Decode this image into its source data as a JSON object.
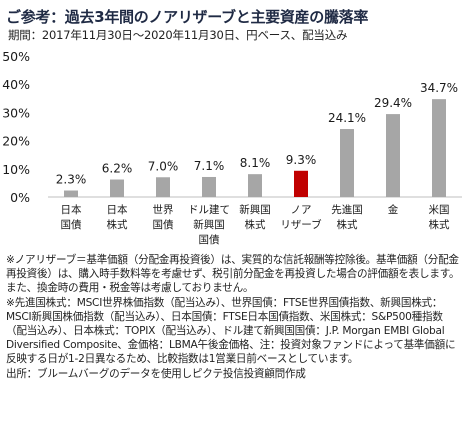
{
  "header": {
    "title": "ご参考：過去3年間のノアリザーブと主要資産の騰落率",
    "subtitle": "期間：2017年11月30日～2020年11月30日、円ベース、配当込み"
  },
  "chart_data": {
    "type": "bar",
    "categories": [
      "日本\n国債",
      "日本\n株式",
      "世界\n国債",
      "ドル建て\n新興国\n国債",
      "新興国\n株式",
      "ノア\nリザーブ",
      "先進国\n株式",
      "金",
      "米国\n株式"
    ],
    "values": [
      2.3,
      6.2,
      7.0,
      7.1,
      8.1,
      9.3,
      24.1,
      29.4,
      34.7
    ],
    "data_labels": [
      "2.3%",
      "6.2%",
      "7.0%",
      "7.1%",
      "8.1%",
      "9.3%",
      "24.1%",
      "29.4%",
      "34.7%"
    ],
    "highlight_index": 5,
    "colors": {
      "default": "#a6a6a6",
      "highlight": "#c00000",
      "axis": "#bfbfbf"
    },
    "ylim": [
      0,
      50
    ],
    "yticks": [
      0,
      10,
      20,
      30,
      40,
      50
    ],
    "ytick_labels": [
      "0%",
      "10%",
      "20%",
      "30%",
      "40%",
      "50%"
    ],
    "grid": false,
    "xlabel": "",
    "ylabel": ""
  },
  "notes": {
    "note1": "※ノアリザーブ＝基準価額（分配金再投資後）は、実質的な信託報酬等控除後。基準価額（分配金再投資後）は、購入時手数料等を考慮せず、税引前分配金を再投資した場合の評価額を表します。また、換金時の費用・税金等は考慮しておりません。",
    "note2": "※先進国株式：MSCI世界株価指数（配当込み）、世界国債：FTSE世界国債指数、新興国株式：MSCI新興国株価指数（配当込み）、日本国債：FTSE日本国債指数、米国株式：S&P500種指数（配当込み）、日本株式：TOPIX（配当込み）、ドル建て新興国国債：J.P. Morgan EMBI Global Diversified Composite、金価格：LBMA午後金価格、注：投資対象ファンドによって基準価額に反映する日が1-2日異なるため、比較指数は1営業日前ベースとしています。",
    "source": "出所：ブルームバーグのデータを使用しピクテ投信投資顧問作成"
  }
}
